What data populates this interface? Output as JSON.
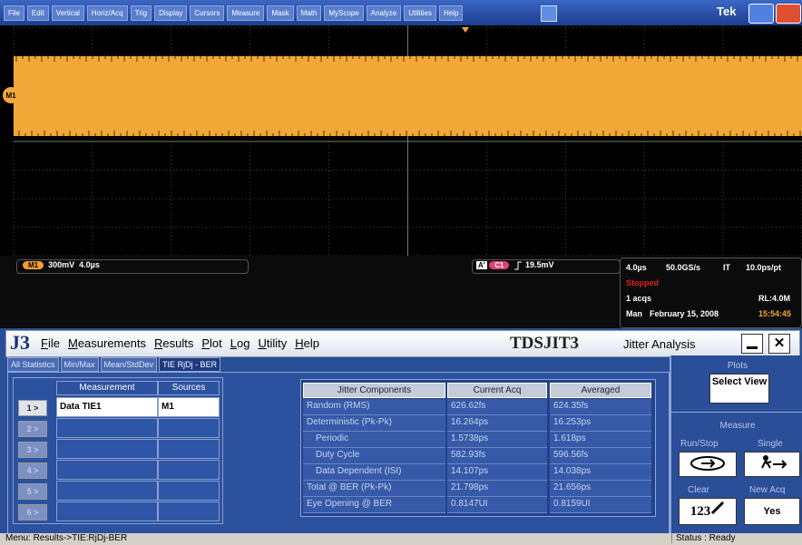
{
  "scope": {
    "menu": [
      "File",
      "Edit",
      "Vertical",
      "Horiz/Acq",
      "Trig",
      "Display",
      "Cursors",
      "Measure",
      "Mask",
      "Math",
      "MyScope",
      "Analyze",
      "Utilities",
      "Help"
    ],
    "brand": "Tek",
    "marker": "M1",
    "readout": {
      "channel": "M1",
      "scale": "300mV",
      "timebase": "4.0µs"
    },
    "trigger": {
      "prefix": "A'",
      "source": "C1",
      "level": "19.5mV"
    },
    "acquisition": {
      "horizontal": "4.0µs",
      "sample_rate": "50.0GS/s",
      "mode": "IT",
      "resolution": "10.0ps/pt",
      "state": "Stopped",
      "acqs": "1 acqs",
      "record_length": "RL:4.0M",
      "trigger_mode": "Man",
      "date": "February 15, 2008",
      "time": "15:54:45"
    }
  },
  "app": {
    "logo": "J3",
    "menu": [
      "File",
      "Measurements",
      "Results",
      "Plot",
      "Log",
      "Utility",
      "Help"
    ],
    "title": "TDSJIT3",
    "subtitle": "Jitter Analysis",
    "tabs": [
      "All Statistics",
      "Min/Max",
      "Mean/StdDev",
      "TIE RjDj - BER"
    ],
    "measurement_table": {
      "headers": [
        "Measurement",
        "Sources"
      ],
      "row_labels": [
        "1 >",
        "2 >",
        "3 >",
        "4 >",
        "5 >",
        "6 >"
      ],
      "rows": [
        [
          "Data TIE1",
          "M1"
        ]
      ]
    },
    "jitter_table": {
      "headers": [
        "Jitter Components",
        "Current Acq",
        "Averaged"
      ],
      "rows": [
        [
          "Random (RMS)",
          "626.62fs",
          "624.35fs"
        ],
        [
          "Deterministic (Pk-Pk)",
          "16.264ps",
          "16.253ps"
        ],
        [
          "Periodic",
          "1.5738ps",
          "1.618ps"
        ],
        [
          "Duty Cycle",
          "582.93fs",
          "596.56fs"
        ],
        [
          "Data Dependent (ISI)",
          "14.107ps",
          "14.038ps"
        ],
        [
          "Total @ BER (Pk-Pk)",
          "21.798ps",
          "21.656ps"
        ],
        [
          "Eye Opening @ BER",
          "0.8147UI",
          "0.8159UI"
        ]
      ]
    },
    "side_panel": {
      "plots_label": "Plots",
      "select_view": "Select View",
      "measure_label": "Measure",
      "run_stop": "Run/Stop",
      "single": "Single",
      "clear": "Clear",
      "clear_icon": "123",
      "new_acq": "New Acq",
      "yes": "Yes"
    },
    "status": {
      "menu": "Menu: Results->TIE:RjDj-BER",
      "status": "Status : Ready"
    }
  }
}
